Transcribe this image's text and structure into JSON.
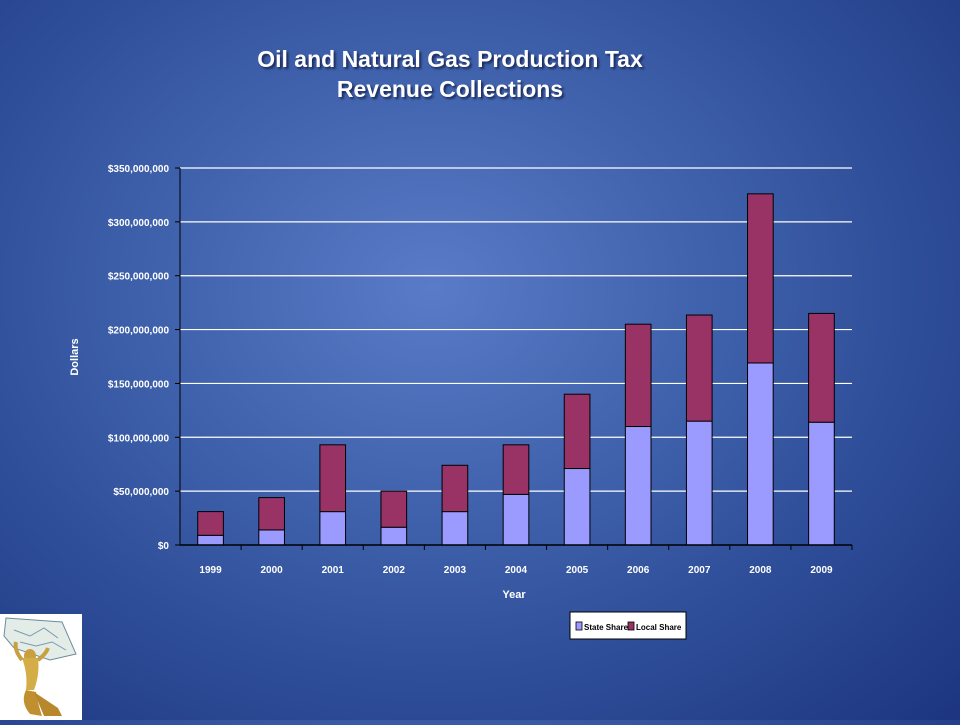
{
  "slide": {
    "title_line1": "Oil and Natural Gas Production Tax",
    "title_line2": "Revenue Collections"
  },
  "colors": {
    "state_share": "#9a9aff",
    "local_share": "#993366",
    "gridline": "#ffffff",
    "bar_outline": "#000000"
  },
  "chart_data": {
    "type": "bar",
    "stacked": true,
    "categories": [
      "1999",
      "2000",
      "2001",
      "2002",
      "2003",
      "2004",
      "2005",
      "2006",
      "2007",
      "2008",
      "2009"
    ],
    "series": [
      {
        "name": "State Share",
        "values": [
          9000000,
          14000000,
          31000000,
          16500000,
          31000000,
          47000000,
          71000000,
          110000000,
          115000000,
          169000000,
          114000000
        ]
      },
      {
        "name": "Local Share",
        "values": [
          22000000,
          30000000,
          62000000,
          33500000,
          43000000,
          46000000,
          69000000,
          95000000,
          98500000,
          157000000,
          101000000
        ]
      }
    ],
    "ylim": [
      0,
      350000000
    ],
    "yticks": [
      0,
      50000000,
      100000000,
      150000000,
      200000000,
      250000000,
      300000000,
      350000000
    ],
    "ytick_labels": [
      "$0",
      "$50,000,000",
      "$100,000,000",
      "$150,000,000",
      "$200,000,000",
      "$250,000,000",
      "$300,000,000",
      "$350,000,000"
    ],
    "xlabel": "Year",
    "ylabel": "Dollars",
    "grid": true,
    "legend_position": "bottom-right"
  }
}
